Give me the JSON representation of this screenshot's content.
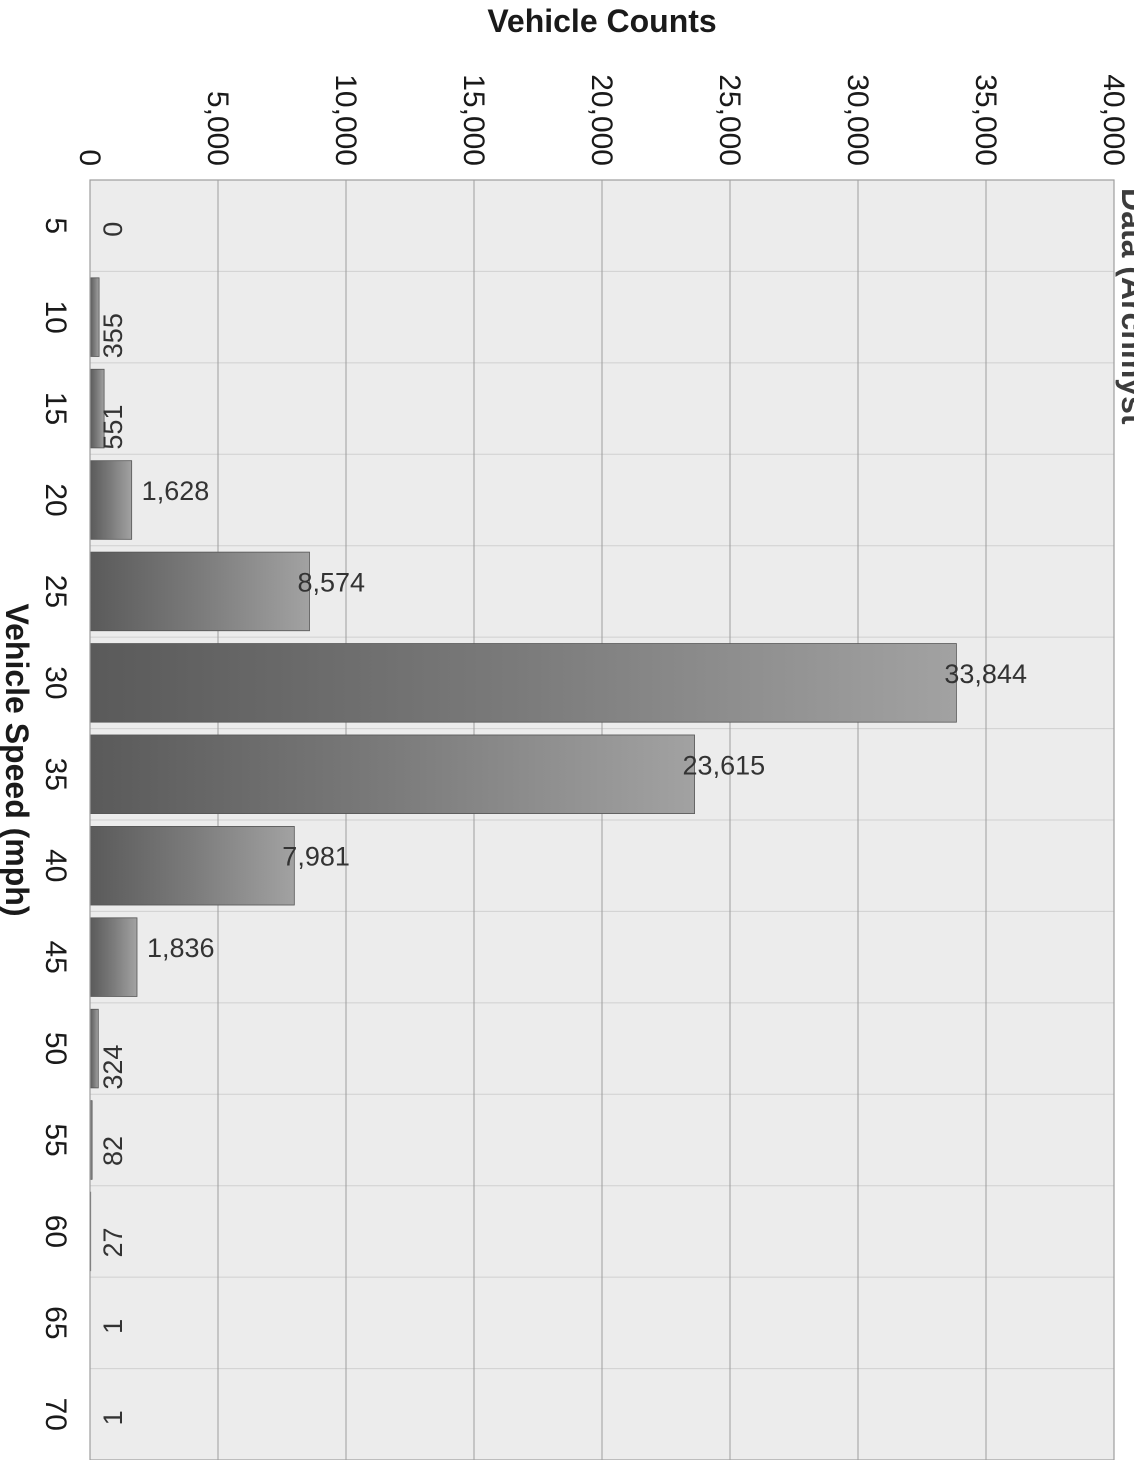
{
  "chart_data": {
    "type": "bar",
    "orientation": "horizontal",
    "title_fragment": "Data (Archmyst",
    "xlabel": "Vehicle Counts",
    "ylabel": "Vehicle Speed (mph)",
    "xlim": [
      0,
      40000
    ],
    "x_ticks": [
      0,
      5000,
      10000,
      15000,
      20000,
      25000,
      30000,
      35000,
      40000
    ],
    "x_tick_labels": [
      "0",
      "5,000",
      "10,000",
      "15,000",
      "20,000",
      "25,000",
      "30,000",
      "35,000",
      "40,000"
    ],
    "categories": [
      "5",
      "10",
      "15",
      "20",
      "25",
      "30",
      "35",
      "40",
      "45",
      "50",
      "55",
      "60",
      "65",
      "70"
    ],
    "values": [
      0,
      355,
      551,
      1628,
      8574,
      33844,
      23615,
      7981,
      1836,
      324,
      82,
      27,
      1,
      1
    ],
    "data_labels": [
      "0",
      "355",
      "551",
      "1,628",
      "8,574",
      "33,844",
      "23,615",
      "7,981",
      "1,836",
      "324",
      "82",
      "27",
      "1",
      "1"
    ],
    "grid": true,
    "legend": "none",
    "colors": {
      "bar": "#7b7b7b",
      "bar_dark": "#555555",
      "plot_background": "#ececec",
      "grid": "#9e9e9e"
    }
  }
}
